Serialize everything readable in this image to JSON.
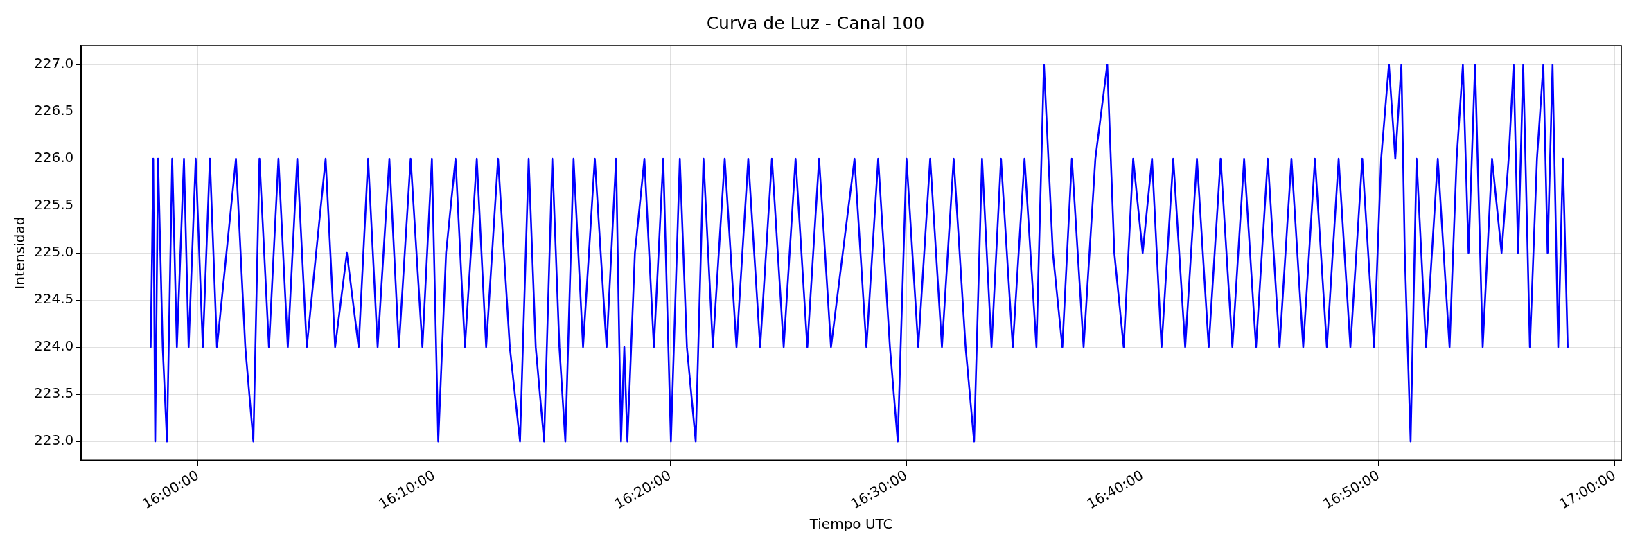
{
  "chart_data": {
    "type": "line",
    "title": "Curva de Luz - Canal 100",
    "xlabel": "Tiempo UTC",
    "ylabel": "Intensidad",
    "xlim": [
      15.9175,
      17.0045
    ],
    "xticks": [
      {
        "value": 16,
        "label": "16:00:00"
      },
      {
        "value": 16.1667,
        "label": "16:10:00"
      },
      {
        "value": 16.3333,
        "label": "16:20:00"
      },
      {
        "value": 16.5,
        "label": "16:30:00"
      },
      {
        "value": 16.6667,
        "label": "16:40:00"
      },
      {
        "value": 16.8333,
        "label": "16:50:00"
      },
      {
        "value": 17,
        "label": "17:00:00"
      }
    ],
    "ylim": [
      222.8,
      227.2
    ],
    "yticks": [
      {
        "value": 223,
        "label": "223.0"
      },
      {
        "value": 223.5,
        "label": "223.5"
      },
      {
        "value": 224,
        "label": "224.0"
      },
      {
        "value": 224.5,
        "label": "224.5"
      },
      {
        "value": 225,
        "label": "225.0"
      },
      {
        "value": 225.5,
        "label": "225.5"
      },
      {
        "value": 226,
        "label": "226.0"
      },
      {
        "value": 226.5,
        "label": "226.5"
      },
      {
        "value": 227,
        "label": "227.0"
      }
    ],
    "grid": true,
    "marker": "none",
    "line_style": "solid",
    "series": [
      {
        "color": "#0000ff",
        "x": [
          15.9665,
          15.9675,
          15.9683,
          15.9697,
          15.9717,
          15.975,
          15.978,
          15.9817,
          15.985,
          15.99,
          15.9933,
          15.9983,
          16.0033,
          16.0083,
          16.0133,
          16.02,
          16.0267,
          16.0333,
          16.039,
          16.0433,
          16.05,
          16.0567,
          16.0633,
          16.07,
          16.0767,
          16.0833,
          16.09,
          16.0967,
          16.105,
          16.1133,
          16.12,
          16.1267,
          16.135,
          16.1417,
          16.15,
          16.1583,
          16.165,
          16.1695,
          16.175,
          16.1817,
          16.1883,
          16.1967,
          16.2033,
          16.2117,
          16.22,
          16.2272,
          16.2333,
          16.2383,
          16.2442,
          16.25,
          16.255,
          16.2592,
          16.265,
          16.2717,
          16.28,
          16.2883,
          16.295,
          16.2985,
          16.3008,
          16.303,
          16.3083,
          16.315,
          16.3217,
          16.3283,
          16.3337,
          16.34,
          16.345,
          16.3512,
          16.3567,
          16.3633,
          16.3717,
          16.38,
          16.3883,
          16.3967,
          16.405,
          16.4133,
          16.4217,
          16.43,
          16.4383,
          16.4467,
          16.455,
          16.4633,
          16.4717,
          16.48,
          16.4883,
          16.4938,
          16.5,
          16.5083,
          16.5167,
          16.525,
          16.5333,
          16.5417,
          16.5477,
          16.5533,
          16.56,
          16.5667,
          16.575,
          16.5833,
          16.5917,
          16.597,
          16.6033,
          16.61,
          16.6167,
          16.625,
          16.6333,
          16.6417,
          16.6467,
          16.6533,
          16.66,
          16.6667,
          16.6733,
          16.68,
          16.6883,
          16.6967,
          16.705,
          16.7133,
          16.7217,
          16.73,
          16.7383,
          16.7467,
          16.755,
          16.7633,
          16.7717,
          16.78,
          16.7883,
          16.7967,
          16.805,
          16.8133,
          16.8217,
          16.83,
          16.835,
          16.8405,
          16.845,
          16.8493,
          16.8517,
          16.8558,
          16.86,
          16.8667,
          16.875,
          16.8833,
          16.8883,
          16.8927,
          16.8967,
          16.9013,
          16.9067,
          16.9133,
          16.92,
          16.925,
          16.9285,
          16.9317,
          16.9353,
          16.94,
          16.945,
          16.9495,
          16.9525,
          16.956,
          16.96,
          16.9633,
          16.9667
        ],
        "values": [
          224,
          225,
          226,
          223,
          226,
          224,
          223,
          226,
          224,
          226,
          224,
          226,
          224,
          226,
          224,
          225,
          226,
          224,
          223,
          226,
          224,
          226,
          224,
          226,
          224,
          225,
          226,
          224,
          225,
          224,
          226,
          224,
          226,
          224,
          226,
          224,
          226,
          223,
          225,
          226,
          224,
          226,
          224,
          226,
          224,
          223,
          226,
          224,
          223,
          226,
          224,
          223,
          226,
          224,
          226,
          224,
          226,
          223,
          224,
          223,
          225,
          226,
          224,
          226,
          223,
          226,
          224,
          223,
          226,
          224,
          226,
          224,
          226,
          224,
          226,
          224,
          226,
          224,
          226,
          224,
          225,
          226,
          224,
          226,
          224,
          223,
          226,
          224,
          226,
          224,
          226,
          224,
          223,
          226,
          224,
          226,
          224,
          226,
          224,
          227,
          225,
          224,
          226,
          224,
          226,
          227,
          225,
          224,
          226,
          225,
          226,
          224,
          226,
          224,
          226,
          224,
          226,
          224,
          226,
          224,
          226,
          224,
          226,
          224,
          226,
          224,
          226,
          224,
          226,
          224,
          226,
          227,
          226,
          227,
          225,
          223,
          226,
          224,
          226,
          224,
          226,
          227,
          225,
          227,
          224,
          226,
          225,
          226,
          227,
          225,
          227,
          224,
          226,
          227,
          225,
          227,
          224,
          226,
          224
        ]
      }
    ]
  }
}
